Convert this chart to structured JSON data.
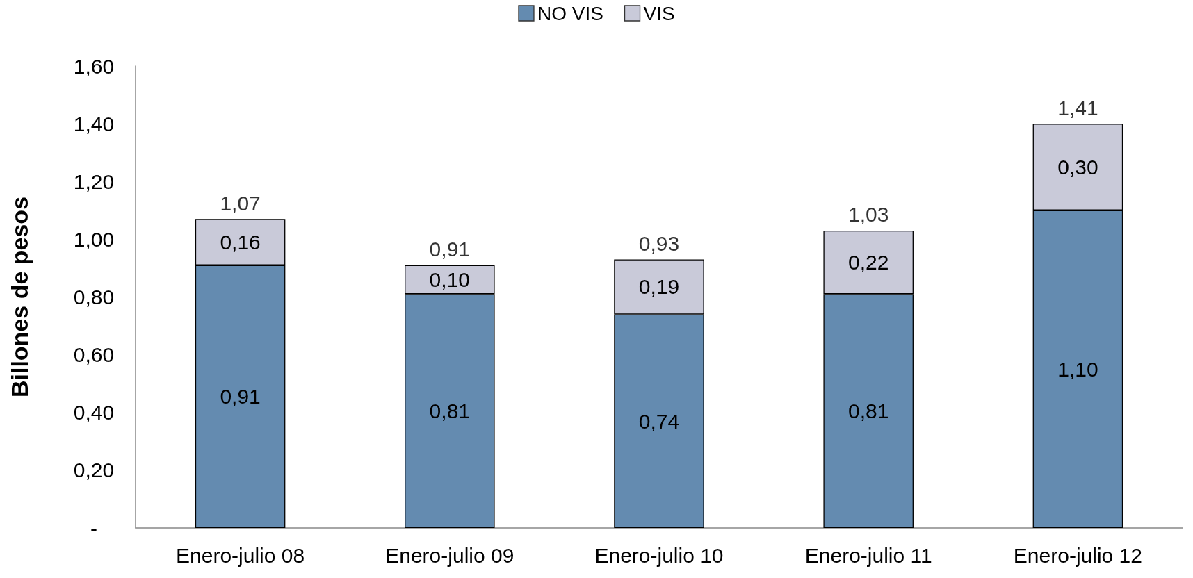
{
  "chart_data": {
    "type": "bar",
    "ylabel": "Billones de pesos",
    "categories": [
      "Enero-julio 08",
      "Enero-julio 09",
      "Enero-julio 10",
      "Enero-julio 11",
      "Enero-julio 12"
    ],
    "series": [
      {
        "name": "NO VIS",
        "color": "#648bb0",
        "values": [
          0.91,
          0.81,
          0.74,
          0.81,
          1.1
        ],
        "value_labels": [
          "0,91",
          "0,81",
          "0,74",
          "0,81",
          "1,10"
        ]
      },
      {
        "name": "VIS",
        "color": "#c9cad9",
        "values": [
          0.16,
          0.1,
          0.19,
          0.22,
          0.3
        ],
        "value_labels": [
          "0,16",
          "0,10",
          "0,19",
          "0,22",
          "0,30"
        ]
      }
    ],
    "stacked": true,
    "totals": [
      "1,07",
      "0,91",
      "0,93",
      "1,03",
      "1,41"
    ],
    "ylim": [
      0,
      1.6
    ],
    "yticks": [
      {
        "value": 0,
        "label": "-"
      },
      {
        "value": 0.2,
        "label": "0,20"
      },
      {
        "value": 0.4,
        "label": "0,40"
      },
      {
        "value": 0.6,
        "label": "0,60"
      },
      {
        "value": 0.8,
        "label": "0,80"
      },
      {
        "value": 1.0,
        "label": "1,00"
      },
      {
        "value": 1.2,
        "label": "1,20"
      },
      {
        "value": 1.4,
        "label": "1,40"
      },
      {
        "value": 1.6,
        "label": "1,60"
      }
    ],
    "grid": false,
    "legend": "top"
  }
}
